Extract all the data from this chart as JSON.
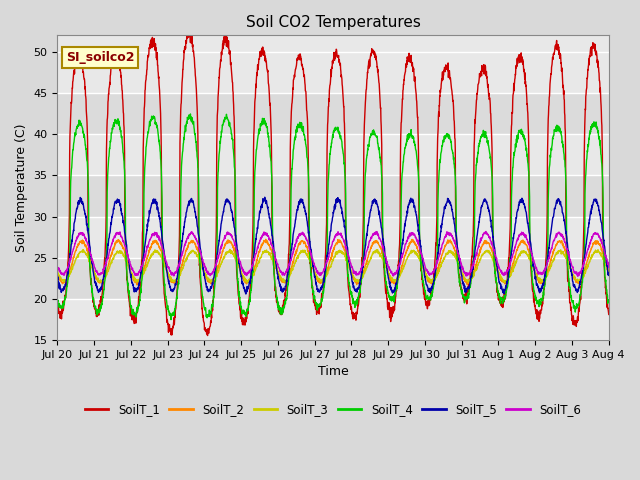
{
  "title": "Soil CO2 Temperatures",
  "xlabel": "Time",
  "ylabel": "Soil Temperature (C)",
  "ylim": [
    15,
    52
  ],
  "yticks": [
    15,
    20,
    25,
    30,
    35,
    40,
    45,
    50
  ],
  "annotation_text": "SI_soilco2",
  "legend_labels": [
    "SoilT_1",
    "SoilT_2",
    "SoilT_3",
    "SoilT_4",
    "SoilT_5",
    "SoilT_6"
  ],
  "line_colors": [
    "#cc0000",
    "#ff8800",
    "#cccc00",
    "#00cc00",
    "#0000aa",
    "#cc00cc"
  ],
  "bg_color": "#e8e8e8",
  "xticklabels": [
    "Jul 20",
    "Jul 21",
    "Jul 22",
    "Jul 23",
    "Jul 24",
    "Jul 25",
    "Jul 26",
    "Jul 27",
    "Jul 28",
    "Jul 29",
    "Jul 30",
    "Jul 31",
    "Aug 1",
    "Aug 2",
    "Aug 3",
    "Aug 4"
  ],
  "num_days": 15,
  "points_per_day": 144,
  "figwidth": 6.4,
  "figheight": 4.8,
  "dpi": 100
}
